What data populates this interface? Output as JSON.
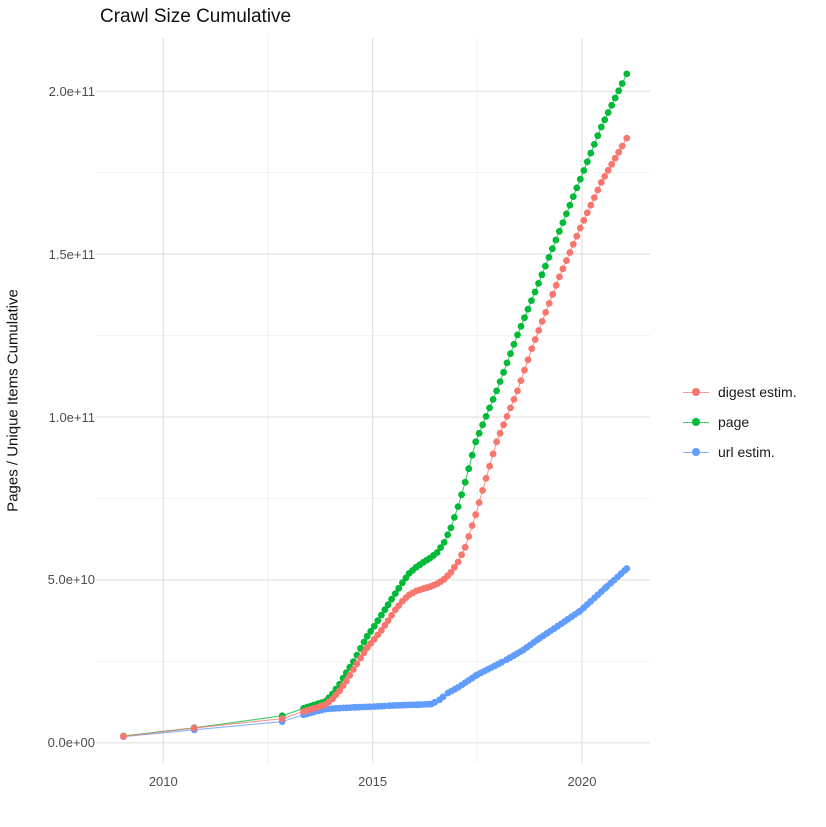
{
  "title": "Crawl Size Cumulative",
  "axes": {
    "y_title": "Pages / Unique Items Cumulative",
    "x_title": "",
    "y_ticks": [
      {
        "label": "2.0e+11",
        "value_e9": 200
      },
      {
        "label": "1.5e+11",
        "value_e9": 150
      },
      {
        "label": "1.0e+11",
        "value_e9": 100
      },
      {
        "label": "5.0e+10",
        "value_e9": 50
      },
      {
        "label": "0.0e+00",
        "value_e9": 0
      }
    ],
    "y_minor_e9": [
      25,
      75,
      125,
      175
    ],
    "x_ticks": [
      {
        "label": "2010",
        "year": 2010
      },
      {
        "label": "2015",
        "year": 2015
      },
      {
        "label": "2020",
        "year": 2020
      }
    ],
    "x_minor_years": [
      2012.5,
      2017.5
    ]
  },
  "legend": {
    "items": [
      {
        "label": "digest estim.",
        "color": "#F8766D"
      },
      {
        "label": "page",
        "color": "#00BA38"
      },
      {
        "label": "url estim.",
        "color": "#619CFF"
      }
    ]
  },
  "chart_data": {
    "type": "scatter",
    "title": "Crawl Size Cumulative",
    "xlabel": "",
    "ylabel": "Pages / Unique Items Cumulative",
    "x_range_years": [
      2008.4,
      2021.6
    ],
    "y_range_e9": [
      0,
      215
    ],
    "grid": "on",
    "legend_position": "right",
    "marker": "point-with-line",
    "dense_dots_from_year": 2013.35,
    "dense_dot_step_years": 0.0833,
    "series": [
      {
        "name": "page",
        "color": "#00BA38",
        "points_year_value_e9": [
          [
            2009.05,
            2.1
          ],
          [
            2010.74,
            4.6
          ],
          [
            2012.84,
            8.3
          ],
          [
            2013.35,
            10.6
          ],
          [
            2013.7,
            12.0
          ],
          [
            2013.87,
            12.7
          ],
          [
            2014.04,
            15.0
          ],
          [
            2014.21,
            18.0
          ],
          [
            2014.37,
            21.5
          ],
          [
            2014.54,
            24.9
          ],
          [
            2014.71,
            29.0
          ],
          [
            2014.87,
            32.7
          ],
          [
            2015.04,
            35.8
          ],
          [
            2015.21,
            39.2
          ],
          [
            2015.37,
            42.4
          ],
          [
            2015.54,
            45.8
          ],
          [
            2015.71,
            49.1
          ],
          [
            2015.87,
            52.0
          ],
          [
            2016.04,
            53.9
          ],
          [
            2016.21,
            55.4
          ],
          [
            2016.37,
            56.7
          ],
          [
            2016.54,
            58.4
          ],
          [
            2016.71,
            61.5
          ],
          [
            2016.87,
            66.0
          ],
          [
            2017.04,
            72.5
          ],
          [
            2017.21,
            80.0
          ],
          [
            2017.46,
            92.4
          ],
          [
            2017.96,
            108.0
          ],
          [
            2018.46,
            125.2
          ],
          [
            2018.96,
            141.0
          ],
          [
            2019.46,
            157.0
          ],
          [
            2019.96,
            173.0
          ],
          [
            2020.46,
            189.0
          ],
          [
            2021.07,
            205.3
          ]
        ]
      },
      {
        "name": "url estim.",
        "color": "#619CFF",
        "points_year_value_e9": [
          [
            2009.05,
            1.9
          ],
          [
            2010.74,
            4.0
          ],
          [
            2012.84,
            6.5
          ],
          [
            2013.35,
            8.6
          ],
          [
            2013.7,
            9.8
          ],
          [
            2013.87,
            10.3
          ],
          [
            2014.04,
            10.5
          ],
          [
            2014.3,
            10.7
          ],
          [
            2014.6,
            10.9
          ],
          [
            2015.04,
            11.1
          ],
          [
            2015.4,
            11.4
          ],
          [
            2015.8,
            11.6
          ],
          [
            2016.1,
            11.7
          ],
          [
            2016.4,
            11.9
          ],
          [
            2016.6,
            13.2
          ],
          [
            2016.8,
            15.3
          ],
          [
            2017.04,
            17.0
          ],
          [
            2017.5,
            20.9
          ],
          [
            2018.2,
            25.5
          ],
          [
            2018.6,
            28.5
          ],
          [
            2019.0,
            32.2
          ],
          [
            2019.5,
            36.5
          ],
          [
            2019.96,
            40.5
          ],
          [
            2020.3,
            44.5
          ],
          [
            2020.6,
            48.0
          ],
          [
            2021.07,
            53.5
          ]
        ]
      },
      {
        "name": "digest estim.",
        "color": "#F8766D",
        "points_year_value_e9": [
          [
            2009.05,
            2.0
          ],
          [
            2010.74,
            4.5
          ],
          [
            2012.84,
            7.4
          ],
          [
            2013.35,
            9.6
          ],
          [
            2013.7,
            11.0
          ],
          [
            2013.87,
            11.7
          ],
          [
            2014.04,
            13.5
          ],
          [
            2014.21,
            16.0
          ],
          [
            2014.37,
            19.0
          ],
          [
            2014.54,
            22.5
          ],
          [
            2014.71,
            26.0
          ],
          [
            2014.87,
            29.2
          ],
          [
            2015.04,
            31.8
          ],
          [
            2015.21,
            34.5
          ],
          [
            2015.37,
            37.5
          ],
          [
            2015.54,
            40.8
          ],
          [
            2015.71,
            43.5
          ],
          [
            2015.87,
            45.4
          ],
          [
            2016.04,
            46.6
          ],
          [
            2016.21,
            47.3
          ],
          [
            2016.37,
            47.9
          ],
          [
            2016.54,
            48.8
          ],
          [
            2016.71,
            50.2
          ],
          [
            2016.87,
            52.3
          ],
          [
            2017.04,
            55.5
          ],
          [
            2017.21,
            60.0
          ],
          [
            2017.46,
            70.0
          ],
          [
            2017.96,
            92.4
          ],
          [
            2018.46,
            108.0
          ],
          [
            2018.8,
            121.0
          ],
          [
            2019.46,
            143.0
          ],
          [
            2019.96,
            158.0
          ],
          [
            2020.46,
            172.0
          ],
          [
            2021.07,
            185.6
          ]
        ]
      }
    ]
  },
  "style": {
    "grid_major_color": "#e3e3e3",
    "grid_minor_color": "#efefef",
    "background": "#ffffff"
  }
}
